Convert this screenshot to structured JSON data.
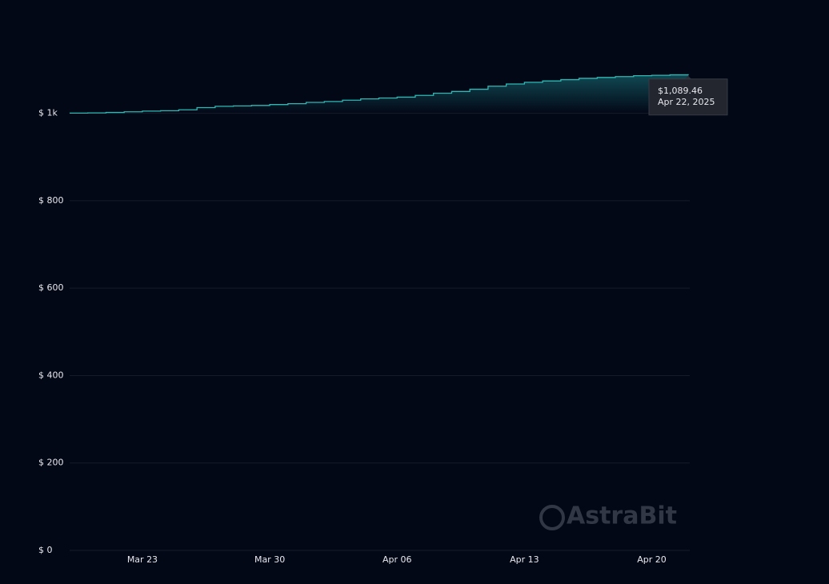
{
  "chart_data": {
    "type": "area",
    "categories": [
      null,
      null,
      null,
      null,
      "Mar 23",
      null,
      null,
      null,
      null,
      null,
      null,
      "Mar 30",
      null,
      null,
      null,
      null,
      null,
      null,
      "Apr 06",
      null,
      null,
      null,
      null,
      null,
      null,
      "Apr 13",
      null,
      null,
      null,
      null,
      null,
      null,
      "Apr 20",
      null,
      null
    ],
    "values": [
      1000.5,
      1001,
      1002,
      1003.5,
      1005,
      1006,
      1008,
      1013,
      1016,
      1017,
      1018,
      1020,
      1022,
      1025,
      1027,
      1030,
      1033,
      1035,
      1037,
      1041,
      1046,
      1050,
      1055,
      1062,
      1067,
      1071,
      1074,
      1077,
      1080,
      1082,
      1084,
      1086,
      1087,
      1088,
      1089.46
    ],
    "color": "#2fb8b3",
    "ylim": [
      0,
      1100
    ],
    "yticks": [
      {
        "value": 0,
        "label": "$ 0"
      },
      {
        "value": 200,
        "label": "$ 200"
      },
      {
        "value": 400,
        "label": "$ 400"
      },
      {
        "value": 600,
        "label": "$ 600"
      },
      {
        "value": 800,
        "label": "$ 800"
      },
      {
        "value": 1000,
        "label": "$ 1k"
      }
    ],
    "grid": true,
    "tooltip": {
      "label": "$1,089.46",
      "date": "Apr 22, 2025"
    },
    "watermark": "AstraBit"
  }
}
